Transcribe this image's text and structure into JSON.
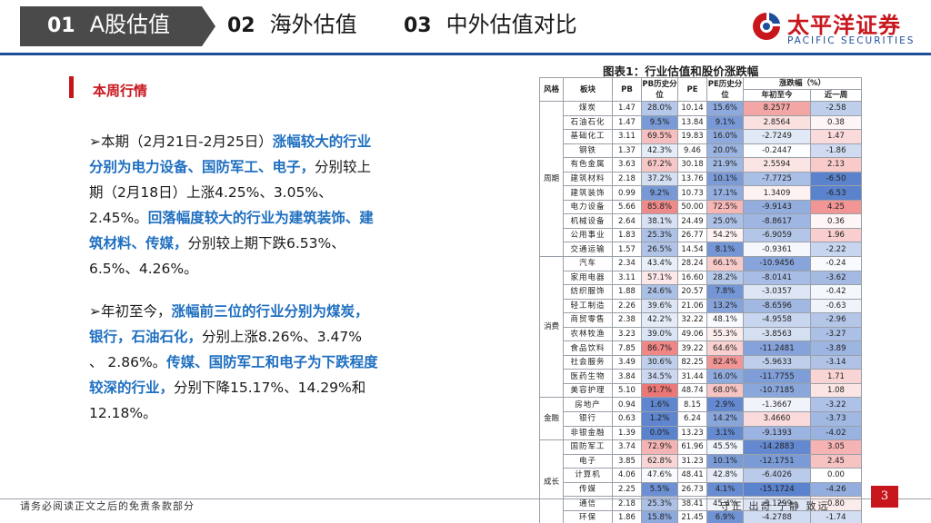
{
  "header": {
    "tabs": [
      {
        "num": "01",
        "label": "A股估值",
        "active": true
      },
      {
        "num": "02",
        "label": "海外估值",
        "active": false
      },
      {
        "num": "03",
        "label": "中外估值对比",
        "active": false
      }
    ],
    "logo": {
      "title": "太平洋证券",
      "subtitle": "PACIFIC SECURITIES"
    }
  },
  "colors": {
    "brand_red": "#c8161d",
    "brand_blue": "#1f4e9a",
    "highlight_blue": "#1f6fc0"
  },
  "section": {
    "title": "本周行情"
  },
  "paragraph1": {
    "prefix": "➢本期（2月21日-2月25日）",
    "hl1": "涨幅较大的行业分别为电力设备、国防军工、电子，",
    "mid": "分别较上期（2月18日）上涨4.25%、3.05%、2.45%。",
    "hl2": "回落幅度较大的行业为建筑装饰、建筑材料、传媒，",
    "suffix": "分别较上期下跌6.53%、6.5%、4.26%。"
  },
  "paragraph2": {
    "prefix": "➢年初至今，",
    "hl1": "涨幅前三位的行业分别为煤炭，银行，石油石化，",
    "mid": "分别上涨8.26%、3.47% 、 2.86%。",
    "hl2": "传媒、国防军工和电子为下跌程度较深的行业，",
    "suffix": "分别下降15.17%、14.29%和12.18%。"
  },
  "table": {
    "title": "图表1：行业估值和股价涨跌幅",
    "headers": [
      "风格",
      "板块",
      "PB",
      "PB历史分位",
      "PE",
      "PE历史分位",
      "年初至今",
      "近一周"
    ],
    "change_header": "涨跌幅（%）",
    "groups": [
      {
        "name": "周期",
        "rows": [
          [
            "煤炭",
            "1.47",
            "28.0%",
            "10.14",
            "15.6%",
            "8.2577",
            "-2.58"
          ],
          [
            "石油石化",
            "1.47",
            "9.5%",
            "13.84",
            "9.1%",
            "2.8564",
            "0.38"
          ],
          [
            "基础化工",
            "3.11",
            "69.5%",
            "19.83",
            "16.0%",
            "-2.7249",
            "1.47"
          ],
          [
            "钢铁",
            "1.37",
            "42.3%",
            "9.46",
            "20.0%",
            "-0.2447",
            "-1.86"
          ],
          [
            "有色金属",
            "3.63",
            "67.2%",
            "30.18",
            "21.9%",
            "2.5594",
            "2.13"
          ],
          [
            "建筑材料",
            "2.18",
            "37.2%",
            "13.76",
            "10.1%",
            "-7.7725",
            "-6.50"
          ],
          [
            "建筑装饰",
            "0.99",
            "9.2%",
            "10.73",
            "17.1%",
            "1.3409",
            "-6.53"
          ],
          [
            "电力设备",
            "5.66",
            "85.8%",
            "50.00",
            "72.5%",
            "-9.9143",
            "4.25"
          ],
          [
            "机械设备",
            "2.64",
            "38.1%",
            "24.49",
            "25.0%",
            "-8.8617",
            "0.36"
          ],
          [
            "公用事业",
            "1.83",
            "25.3%",
            "26.77",
            "54.2%",
            "-6.9059",
            "1.96"
          ],
          [
            "交通运输",
            "1.57",
            "26.5%",
            "14.54",
            "8.1%",
            "-0.9361",
            "-2.22"
          ]
        ]
      },
      {
        "name": "消费",
        "rows": [
          [
            "汽车",
            "2.34",
            "43.4%",
            "28.24",
            "66.1%",
            "-10.9456",
            "-0.24"
          ],
          [
            "家用电器",
            "3.11",
            "57.1%",
            "16.60",
            "28.2%",
            "-8.0141",
            "-3.62"
          ],
          [
            "纺织服饰",
            "1.88",
            "24.6%",
            "20.57",
            "7.8%",
            "-3.0357",
            "-0.42"
          ],
          [
            "轻工制造",
            "2.26",
            "39.6%",
            "21.06",
            "13.2%",
            "-8.6596",
            "-0.63"
          ],
          [
            "商贸零售",
            "2.38",
            "42.2%",
            "32.22",
            "48.1%",
            "-4.9558",
            "-2.96"
          ],
          [
            "农林牧渔",
            "3.23",
            "39.0%",
            "49.06",
            "55.3%",
            "-3.8563",
            "-3.27"
          ],
          [
            "食品饮料",
            "7.85",
            "86.7%",
            "39.22",
            "64.6%",
            "-11.2481",
            "-3.89"
          ],
          [
            "社会服务",
            "3.49",
            "30.6%",
            "82.25",
            "82.4%",
            "-5.9633",
            "-3.14"
          ],
          [
            "医药生物",
            "3.84",
            "34.5%",
            "31.44",
            "16.0%",
            "-11.7755",
            "1.71"
          ],
          [
            "美容护理",
            "5.10",
            "91.7%",
            "48.74",
            "68.0%",
            "-10.7185",
            "1.08"
          ]
        ]
      },
      {
        "name": "金融",
        "rows": [
          [
            "房地产",
            "0.94",
            "1.6%",
            "8.15",
            "2.9%",
            "-1.3667",
            "-3.22"
          ],
          [
            "银行",
            "0.63",
            "1.2%",
            "6.24",
            "14.2%",
            "3.4660",
            "-3.73"
          ],
          [
            "非银金融",
            "1.39",
            "0.0%",
            "13.23",
            "3.1%",
            "-9.1393",
            "-4.02"
          ]
        ]
      },
      {
        "name": "成长",
        "rows": [
          [
            "国防军工",
            "3.74",
            "72.9%",
            "61.96",
            "45.5%",
            "-14.2883",
            "3.05"
          ],
          [
            "电子",
            "3.85",
            "62.8%",
            "31.23",
            "10.1%",
            "-12.1751",
            "2.45"
          ],
          [
            "计算机",
            "4.06",
            "47.6%",
            "48.41",
            "42.8%",
            "-6.4026",
            "0.00"
          ],
          [
            "传媒",
            "2.25",
            "5.5%",
            "26.73",
            "4.1%",
            "-15.1724",
            "-4.26"
          ],
          [
            "通信",
            "2.18",
            "25.3%",
            "38.41",
            "45.4%",
            "-3.1299",
            "0.80"
          ],
          [
            "环保",
            "1.86",
            "15.8%",
            "21.45",
            "6.9%",
            "-4.2788",
            "-1.74"
          ]
        ]
      }
    ]
  },
  "footer": {
    "disclaimer": "请务必阅读正文之后的免责条款部分",
    "motto": "守正 出奇 宁静 致远",
    "page": "3"
  }
}
